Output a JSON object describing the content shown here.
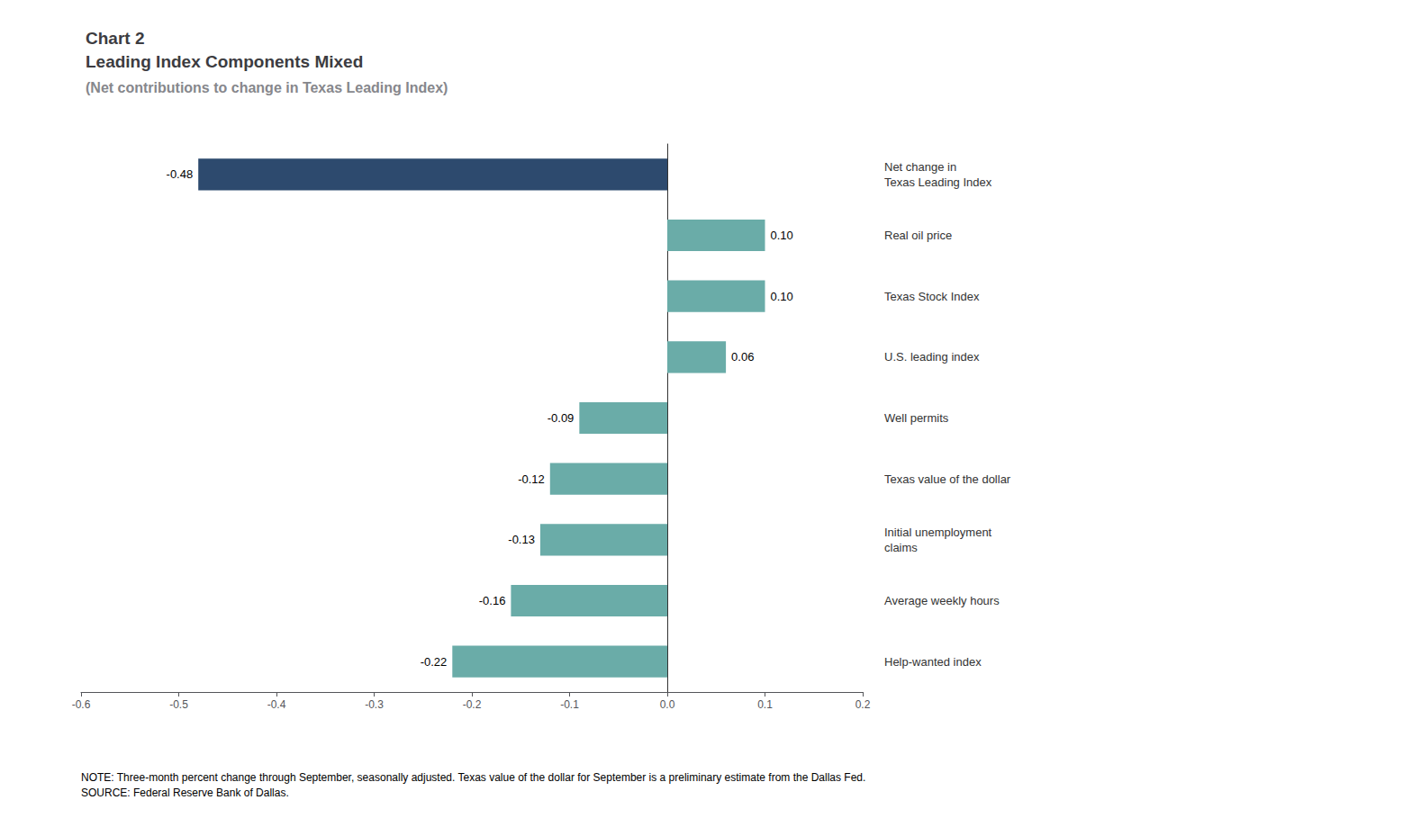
{
  "chart_data": {
    "type": "bar",
    "orientation": "horizontal",
    "title": "Chart 2\nLeading Index Components Mixed",
    "subtitle": "(Net contributions to change in Texas Leading Index)",
    "annotations": [
      "NOTE: Three-month percent change through September, seasonally adjusted. Texas value of the dollar for September is a preliminary estimate from the Dallas Fed.\nSOURCE: Federal Reserve Bank of Dallas."
    ],
    "categories": [
      "Net change in\nTexas Leading Index",
      "Real oil price",
      "Texas Stock Index",
      "U.S. leading index",
      "Well permits",
      "Texas value of the dollar",
      "Initial unemployment\nclaims",
      "Average weekly hours",
      "Help-wanted index"
    ],
    "values": [
      -0.48,
      0.1,
      0.1,
      0.06,
      -0.09,
      -0.12,
      -0.13,
      -0.16,
      -0.22
    ],
    "value_labels": [
      "-0.48",
      "0.10",
      "0.10",
      "0.06",
      "-0.09",
      "-0.12",
      "-0.13",
      "-0.16",
      "-0.22"
    ],
    "colors": [
      "#2d4a6e",
      "#6aaca8",
      "#6aaca8",
      "#6aaca8",
      "#6aaca8",
      "#6aaca8",
      "#6aaca8",
      "#6aaca8",
      "#6aaca8"
    ],
    "data_labels": true,
    "xlim": [
      -0.6,
      0.2
    ],
    "xticks": [
      -0.6,
      -0.5,
      -0.4,
      -0.3,
      -0.2,
      -0.1,
      {
        "value": 0,
        "label": "0.0"
      },
      0.1,
      0.2
    ],
    "grid": false
  }
}
